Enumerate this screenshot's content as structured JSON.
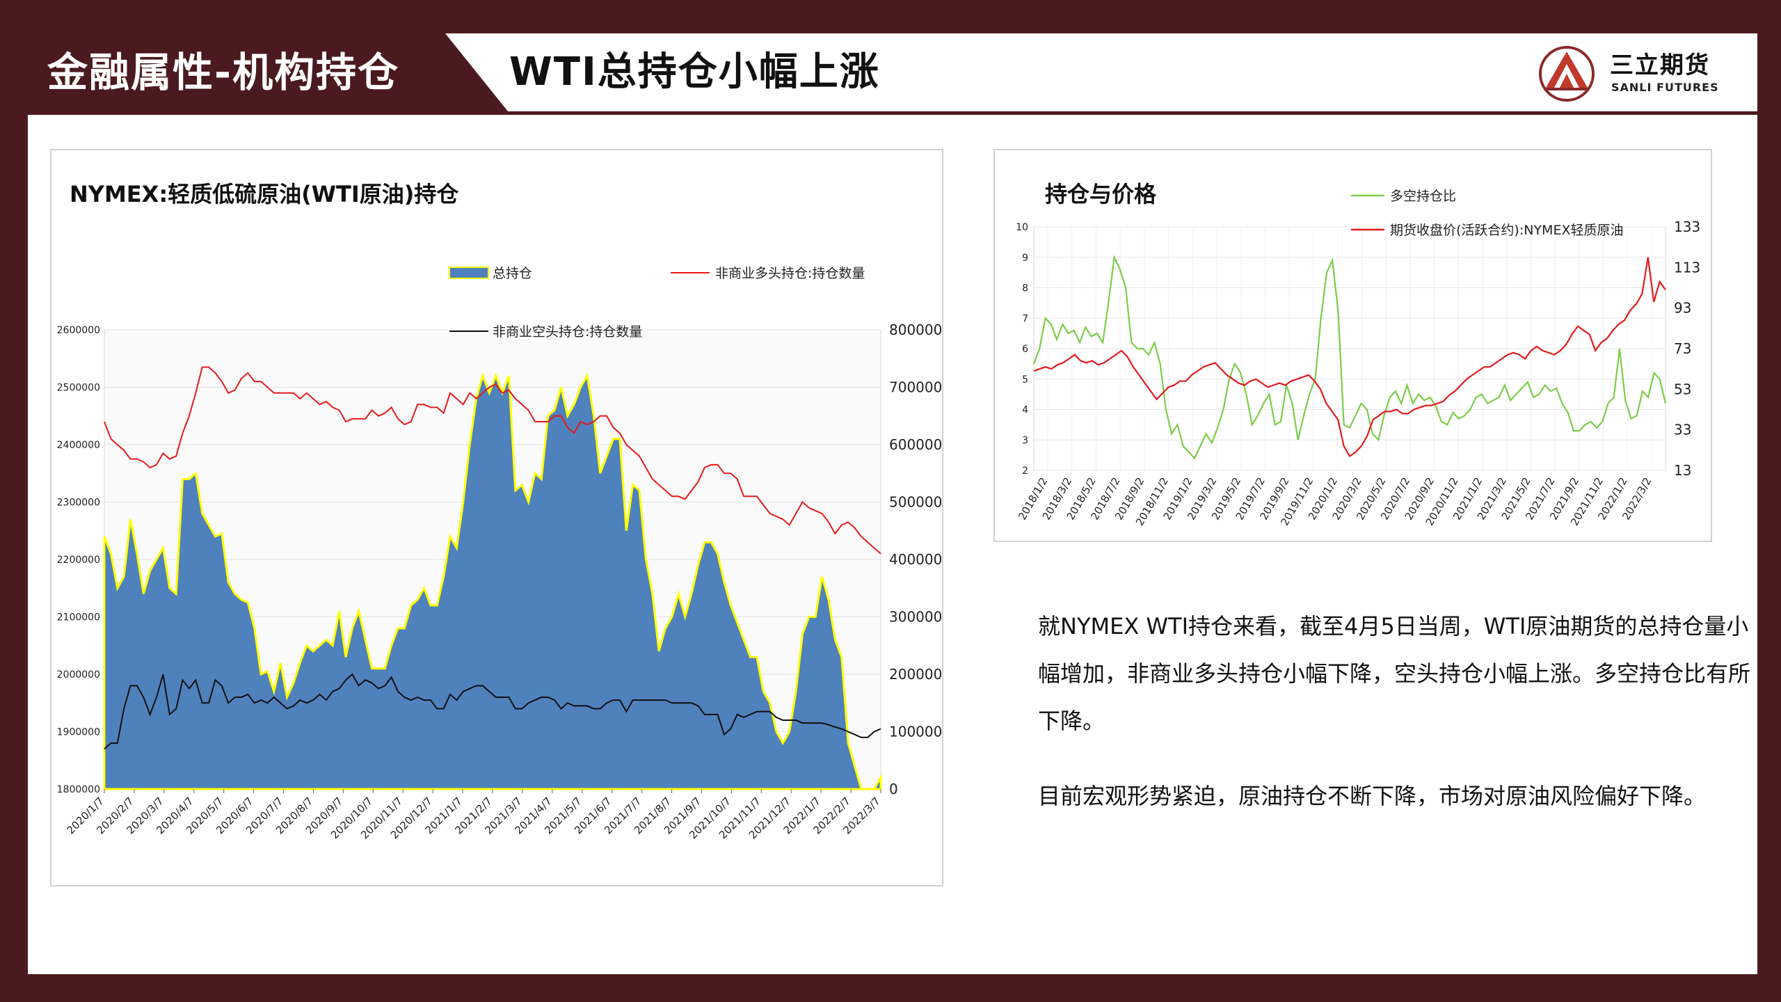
{
  "header": {
    "section_title": "金融属性-机构持仓",
    "page_title": "WTI总持仓小幅上涨",
    "logo_name": "三立期货",
    "logo_sub": "SANLI FUTURES"
  },
  "colors": {
    "brand": "#4a1a1f",
    "area_fill": "#4f81bd",
    "area_edge": "#ffff00",
    "red_line": "#e41a1c",
    "black_line": "#111111",
    "green_line": "#7ccc4a"
  },
  "commentary": [
    "就NYMEX WTI持仓来看，截至4月5日当周，WTI原油期货的总持仓量小幅增加，非商业多头持仓小幅下降，空头持仓小幅上涨。多空持仓比有所下降。",
    "目前宏观形势紧迫，原油持仓不断下降，市场对原油风险偏好下降。"
  ],
  "chart_data": [
    {
      "type": "area",
      "title": "NYMEX:轻质低硫原油(WTI原油)持仓",
      "legend": [
        "总持仓",
        "非商业多头持仓:持仓数量",
        "非商业空头持仓:持仓数量"
      ],
      "x_tick_labels": [
        "2020/1/7",
        "2020/2/7",
        "2020/3/7",
        "2020/4/7",
        "2020/5/7",
        "2020/6/7",
        "2020/7/7",
        "2020/8/7",
        "2020/9/7",
        "2020/10/7",
        "2020/11/7",
        "2020/12/7",
        "2021/1/7",
        "2021/2/7",
        "2021/3/7",
        "2021/4/7",
        "2021/5/7",
        "2021/6/7",
        "2021/7/7",
        "2021/8/7",
        "2021/9/7",
        "2021/10/7",
        "2021/11/7",
        "2021/12/7",
        "2022/1/7",
        "2022/2/7",
        "2022/3/7"
      ],
      "y_left": {
        "min": 1800000,
        "max": 2600000,
        "ticks": [
          "1800000",
          "1900000",
          "2000000",
          "2100000",
          "2200000",
          "2300000",
          "2400000",
          "2500000",
          "2600000"
        ]
      },
      "y_right": {
        "min": 0,
        "max": 800000,
        "ticks": [
          "0",
          "100000",
          "200000",
          "300000",
          "400000",
          "500000",
          "600000",
          "700000",
          "800000"
        ]
      },
      "series": [
        {
          "name": "总持仓",
          "axis": "left",
          "values": [
            2240000,
            2210000,
            2150000,
            2170000,
            2270000,
            2210000,
            2140000,
            2180000,
            2200000,
            2220000,
            2150000,
            2140000,
            2340000,
            2340000,
            2350000,
            2280000,
            2260000,
            2240000,
            2245000,
            2160000,
            2140000,
            2130000,
            2125000,
            2080000,
            2000000,
            2005000,
            1970000,
            2020000,
            1960000,
            1985000,
            2020000,
            2050000,
            2040000,
            2050000,
            2060000,
            2050000,
            2110000,
            2030000,
            2080000,
            2110000,
            2060000,
            2010000,
            2010000,
            2010000,
            2050000,
            2080000,
            2080000,
            2120000,
            2130000,
            2150000,
            2120000,
            2120000,
            2170000,
            2240000,
            2220000,
            2300000,
            2400000,
            2480000,
            2520000,
            2490000,
            2520000,
            2490000,
            2520000,
            2320000,
            2330000,
            2300000,
            2350000,
            2340000,
            2450000,
            2460000,
            2500000,
            2450000,
            2470000,
            2500000,
            2520000,
            2450000,
            2350000,
            2380000,
            2410000,
            2410000,
            2250000,
            2330000,
            2320000,
            2200000,
            2140000,
            2040000,
            2080000,
            2100000,
            2140000,
            2100000,
            2140000,
            2190000,
            2230000,
            2230000,
            2210000,
            2160000,
            2120000,
            2090000,
            2060000,
            2030000,
            2030000,
            1970000,
            1950000,
            1900000,
            1880000,
            1900000,
            1970000,
            2070000,
            2100000,
            2100000,
            2170000,
            2130000,
            2060000,
            2030000,
            1880000,
            1840000,
            1800000,
            1800000,
            1800000,
            1820000
          ]
        },
        {
          "name": "非商业多头持仓:持仓数量",
          "axis": "right",
          "values": [
            640000,
            610000,
            600000,
            590000,
            575000,
            575000,
            570000,
            560000,
            565000,
            585000,
            575000,
            580000,
            620000,
            650000,
            690000,
            735000,
            735000,
            725000,
            710000,
            690000,
            695000,
            715000,
            725000,
            710000,
            710000,
            700000,
            690000,
            690000,
            690000,
            690000,
            680000,
            690000,
            680000,
            670000,
            675000,
            665000,
            660000,
            640000,
            645000,
            645000,
            645000,
            660000,
            650000,
            655000,
            665000,
            645000,
            635000,
            640000,
            670000,
            670000,
            665000,
            665000,
            655000,
            690000,
            680000,
            670000,
            690000,
            680000,
            690000,
            700000,
            705000,
            690000,
            695000,
            680000,
            670000,
            660000,
            640000,
            640000,
            640000,
            650000,
            650000,
            630000,
            620000,
            640000,
            635000,
            640000,
            650000,
            650000,
            630000,
            620000,
            600000,
            590000,
            580000,
            560000,
            540000,
            530000,
            520000,
            510000,
            510000,
            505000,
            520000,
            535000,
            560000,
            565000,
            565000,
            550000,
            550000,
            540000,
            510000,
            510000,
            510000,
            495000,
            480000,
            475000,
            470000,
            460000,
            480000,
            500000,
            490000,
            485000,
            480000,
            465000,
            445000,
            460000,
            465000,
            455000,
            440000,
            430000,
            420000,
            410000
          ]
        },
        {
          "name": "非商业空头持仓:持仓数量",
          "axis": "right",
          "values": [
            70000,
            80000,
            80000,
            140000,
            180000,
            180000,
            160000,
            130000,
            160000,
            200000,
            130000,
            140000,
            190000,
            175000,
            190000,
            150000,
            150000,
            190000,
            180000,
            150000,
            160000,
            160000,
            165000,
            150000,
            155000,
            150000,
            160000,
            150000,
            140000,
            145000,
            155000,
            150000,
            155000,
            165000,
            155000,
            170000,
            175000,
            190000,
            200000,
            180000,
            190000,
            185000,
            175000,
            180000,
            195000,
            170000,
            160000,
            155000,
            160000,
            155000,
            155000,
            140000,
            140000,
            165000,
            155000,
            170000,
            175000,
            180000,
            180000,
            170000,
            160000,
            160000,
            160000,
            140000,
            140000,
            150000,
            155000,
            160000,
            160000,
            155000,
            140000,
            150000,
            145000,
            145000,
            145000,
            140000,
            140000,
            150000,
            155000,
            155000,
            135000,
            155000,
            155000,
            155000,
            155000,
            155000,
            155000,
            150000,
            150000,
            150000,
            150000,
            145000,
            130000,
            130000,
            130000,
            95000,
            105000,
            130000,
            125000,
            130000,
            135000,
            135000,
            135000,
            125000,
            120000,
            120000,
            120000,
            115000,
            115000,
            115000,
            115000,
            112000,
            108000,
            105000,
            100000,
            95000,
            90000,
            90000,
            100000,
            105000
          ]
        }
      ]
    },
    {
      "type": "line",
      "title": "持仓与价格",
      "legend": [
        "多空持仓比",
        "期货收盘价(活跃合约):NYMEX轻质原油"
      ],
      "x_tick_labels": [
        "2018/1/2",
        "2018/3/2",
        "2018/5/2",
        "2018/7/2",
        "2018/9/2",
        "2018/11/2",
        "2019/1/2",
        "2019/3/2",
        "2019/5/2",
        "2019/7/2",
        "2019/9/2",
        "2019/11/2",
        "2020/1/2",
        "2020/3/2",
        "2020/5/2",
        "2020/7/2",
        "2020/9/2",
        "2020/11/2",
        "2021/1/2",
        "2021/3/2",
        "2021/5/2",
        "2021/7/2",
        "2021/9/2",
        "2021/11/2",
        "2022/1/2",
        "2022/3/2"
      ],
      "y_left": {
        "min": 2,
        "max": 10,
        "ticks": [
          "2",
          "3",
          "4",
          "5",
          "6",
          "7",
          "8",
          "9",
          "10"
        ]
      },
      "y_right": {
        "min": 13,
        "max": 133,
        "ticks": [
          "13",
          "33",
          "53",
          "73",
          "93",
          "113",
          "133"
        ]
      },
      "series": [
        {
          "name": "多空持仓比",
          "axis": "left",
          "values": [
            5.5,
            6.0,
            7.0,
            6.8,
            6.3,
            6.8,
            6.5,
            6.6,
            6.2,
            6.7,
            6.4,
            6.5,
            6.2,
            7.5,
            9.0,
            8.6,
            8.0,
            6.2,
            6.0,
            6.0,
            5.8,
            6.2,
            5.5,
            4.0,
            3.2,
            3.5,
            2.8,
            2.6,
            2.4,
            2.8,
            3.2,
            2.9,
            3.4,
            4.0,
            5.0,
            5.5,
            5.2,
            4.5,
            3.5,
            3.8,
            4.2,
            4.5,
            3.5,
            3.6,
            4.8,
            4.2,
            3.0,
            3.8,
            4.5,
            5.0,
            7.0,
            8.5,
            8.9,
            7.2,
            3.5,
            3.4,
            3.8,
            4.2,
            4.0,
            3.2,
            3.0,
            3.8,
            4.4,
            4.6,
            4.2,
            4.8,
            4.2,
            4.5,
            4.3,
            4.4,
            4.1,
            3.6,
            3.5,
            3.9,
            3.7,
            3.8,
            4.0,
            4.4,
            4.5,
            4.2,
            4.3,
            4.4,
            4.8,
            4.3,
            4.5,
            4.7,
            4.9,
            4.4,
            4.5,
            4.8,
            4.6,
            4.7,
            4.2,
            3.9,
            3.3,
            3.3,
            3.5,
            3.6,
            3.4,
            3.6,
            4.2,
            4.4,
            6.0,
            4.3,
            3.7,
            3.8,
            4.6,
            4.4,
            5.2,
            5.0,
            4.2
          ]
        },
        {
          "name": "期货收盘价(活跃合约):NYMEX轻质原油",
          "axis": "right",
          "values": [
            62,
            63,
            64,
            63,
            65,
            66,
            68,
            70,
            67,
            66,
            67,
            65,
            66,
            68,
            70,
            72,
            69,
            64,
            60,
            56,
            52,
            48,
            51,
            54,
            55,
            57,
            57,
            60,
            62,
            64,
            65,
            66,
            63,
            60,
            58,
            56,
            55,
            57,
            58,
            56,
            54,
            55,
            56,
            55,
            57,
            58,
            59,
            60,
            57,
            53,
            46,
            42,
            38,
            25,
            20,
            22,
            25,
            30,
            38,
            40,
            42,
            42,
            43,
            41,
            41,
            43,
            44,
            45,
            45,
            46,
            47,
            50,
            52,
            55,
            58,
            60,
            62,
            64,
            64,
            66,
            68,
            70,
            71,
            70,
            68,
            72,
            74,
            72,
            71,
            70,
            72,
            75,
            80,
            84,
            82,
            80,
            72,
            76,
            78,
            82,
            85,
            87,
            92,
            95,
            100,
            118,
            96,
            106,
            102
          ]
        }
      ]
    }
  ]
}
